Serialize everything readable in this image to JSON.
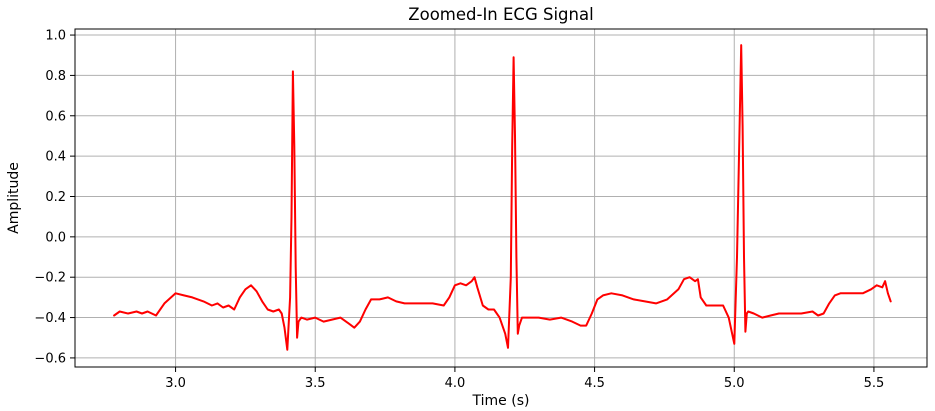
{
  "chart_data": {
    "type": "line",
    "title": "Zoomed-In ECG Signal",
    "xlabel": "Time (s)",
    "ylabel": "Amplitude",
    "xlim": [
      2.64,
      5.69
    ],
    "ylim": [
      -0.645,
      1.03
    ],
    "xticks": [
      3.0,
      3.5,
      4.0,
      4.5,
      5.0,
      5.5
    ],
    "xtick_labels": [
      "3.0",
      "3.5",
      "4.0",
      "4.5",
      "5.0",
      "5.5"
    ],
    "yticks": [
      -0.6,
      -0.4,
      -0.2,
      0.0,
      0.2,
      0.4,
      0.6,
      0.8,
      1.0
    ],
    "ytick_labels": [
      "−0.6",
      "−0.4",
      "−0.2",
      "0.0",
      "0.2",
      "0.4",
      "0.6",
      "0.8",
      "1.0"
    ],
    "grid": true,
    "series": [
      {
        "color": "#ff0000",
        "x": [
          2.78,
          2.8,
          2.83,
          2.86,
          2.88,
          2.9,
          2.93,
          2.96,
          3.0,
          3.03,
          3.06,
          3.1,
          3.13,
          3.15,
          3.17,
          3.19,
          3.21,
          3.23,
          3.25,
          3.27,
          3.29,
          3.31,
          3.33,
          3.35,
          3.37,
          3.38,
          3.39,
          3.4,
          3.41,
          3.415,
          3.42,
          3.425,
          3.43,
          3.435,
          3.44,
          3.45,
          3.47,
          3.5,
          3.53,
          3.56,
          3.59,
          3.62,
          3.64,
          3.66,
          3.68,
          3.7,
          3.73,
          3.76,
          3.79,
          3.82,
          3.85,
          3.88,
          3.92,
          3.96,
          3.98,
          4.0,
          4.02,
          4.04,
          4.06,
          4.07,
          4.08,
          4.1,
          4.12,
          4.14,
          4.16,
          4.18,
          4.19,
          4.2,
          4.205,
          4.21,
          4.215,
          4.22,
          4.225,
          4.23,
          4.24,
          4.26,
          4.3,
          4.34,
          4.38,
          4.42,
          4.45,
          4.47,
          4.49,
          4.51,
          4.53,
          4.56,
          4.6,
          4.64,
          4.68,
          4.72,
          4.76,
          4.8,
          4.82,
          4.84,
          4.86,
          4.87,
          4.88,
          4.9,
          4.93,
          4.96,
          4.98,
          5.0,
          5.01,
          5.02,
          5.025,
          5.03,
          5.035,
          5.04,
          5.045,
          5.05,
          5.07,
          5.1,
          5.13,
          5.16,
          5.2,
          5.24,
          5.28,
          5.3,
          5.32,
          5.34,
          5.36,
          5.38,
          5.42,
          5.46,
          5.49,
          5.51,
          5.53,
          5.54,
          5.55,
          5.56
        ],
        "y": [
          -0.39,
          -0.37,
          -0.38,
          -0.37,
          -0.38,
          -0.37,
          -0.39,
          -0.33,
          -0.28,
          -0.29,
          -0.3,
          -0.32,
          -0.34,
          -0.33,
          -0.35,
          -0.34,
          -0.36,
          -0.3,
          -0.26,
          -0.24,
          -0.27,
          -0.32,
          -0.36,
          -0.37,
          -0.36,
          -0.38,
          -0.45,
          -0.56,
          -0.3,
          0.1,
          0.82,
          0.45,
          -0.15,
          -0.5,
          -0.42,
          -0.4,
          -0.41,
          -0.4,
          -0.42,
          -0.41,
          -0.4,
          -0.43,
          -0.45,
          -0.42,
          -0.36,
          -0.31,
          -0.31,
          -0.3,
          -0.32,
          -0.33,
          -0.33,
          -0.33,
          -0.33,
          -0.34,
          -0.3,
          -0.24,
          -0.23,
          -0.24,
          -0.22,
          -0.2,
          -0.25,
          -0.34,
          -0.36,
          -0.36,
          -0.4,
          -0.48,
          -0.55,
          -0.2,
          0.45,
          0.89,
          0.5,
          -0.1,
          -0.48,
          -0.44,
          -0.4,
          -0.4,
          -0.4,
          -0.41,
          -0.4,
          -0.42,
          -0.44,
          -0.44,
          -0.38,
          -0.31,
          -0.29,
          -0.28,
          -0.29,
          -0.31,
          -0.32,
          -0.33,
          -0.31,
          -0.26,
          -0.21,
          -0.2,
          -0.22,
          -0.21,
          -0.3,
          -0.34,
          -0.34,
          -0.34,
          -0.4,
          -0.53,
          -0.1,
          0.6,
          0.95,
          0.55,
          -0.1,
          -0.47,
          -0.38,
          -0.37,
          -0.38,
          -0.4,
          -0.39,
          -0.38,
          -0.38,
          -0.38,
          -0.37,
          -0.39,
          -0.38,
          -0.33,
          -0.29,
          -0.28,
          -0.28,
          -0.28,
          -0.26,
          -0.24,
          -0.25,
          -0.22,
          -0.28,
          -0.32
        ]
      }
    ]
  }
}
